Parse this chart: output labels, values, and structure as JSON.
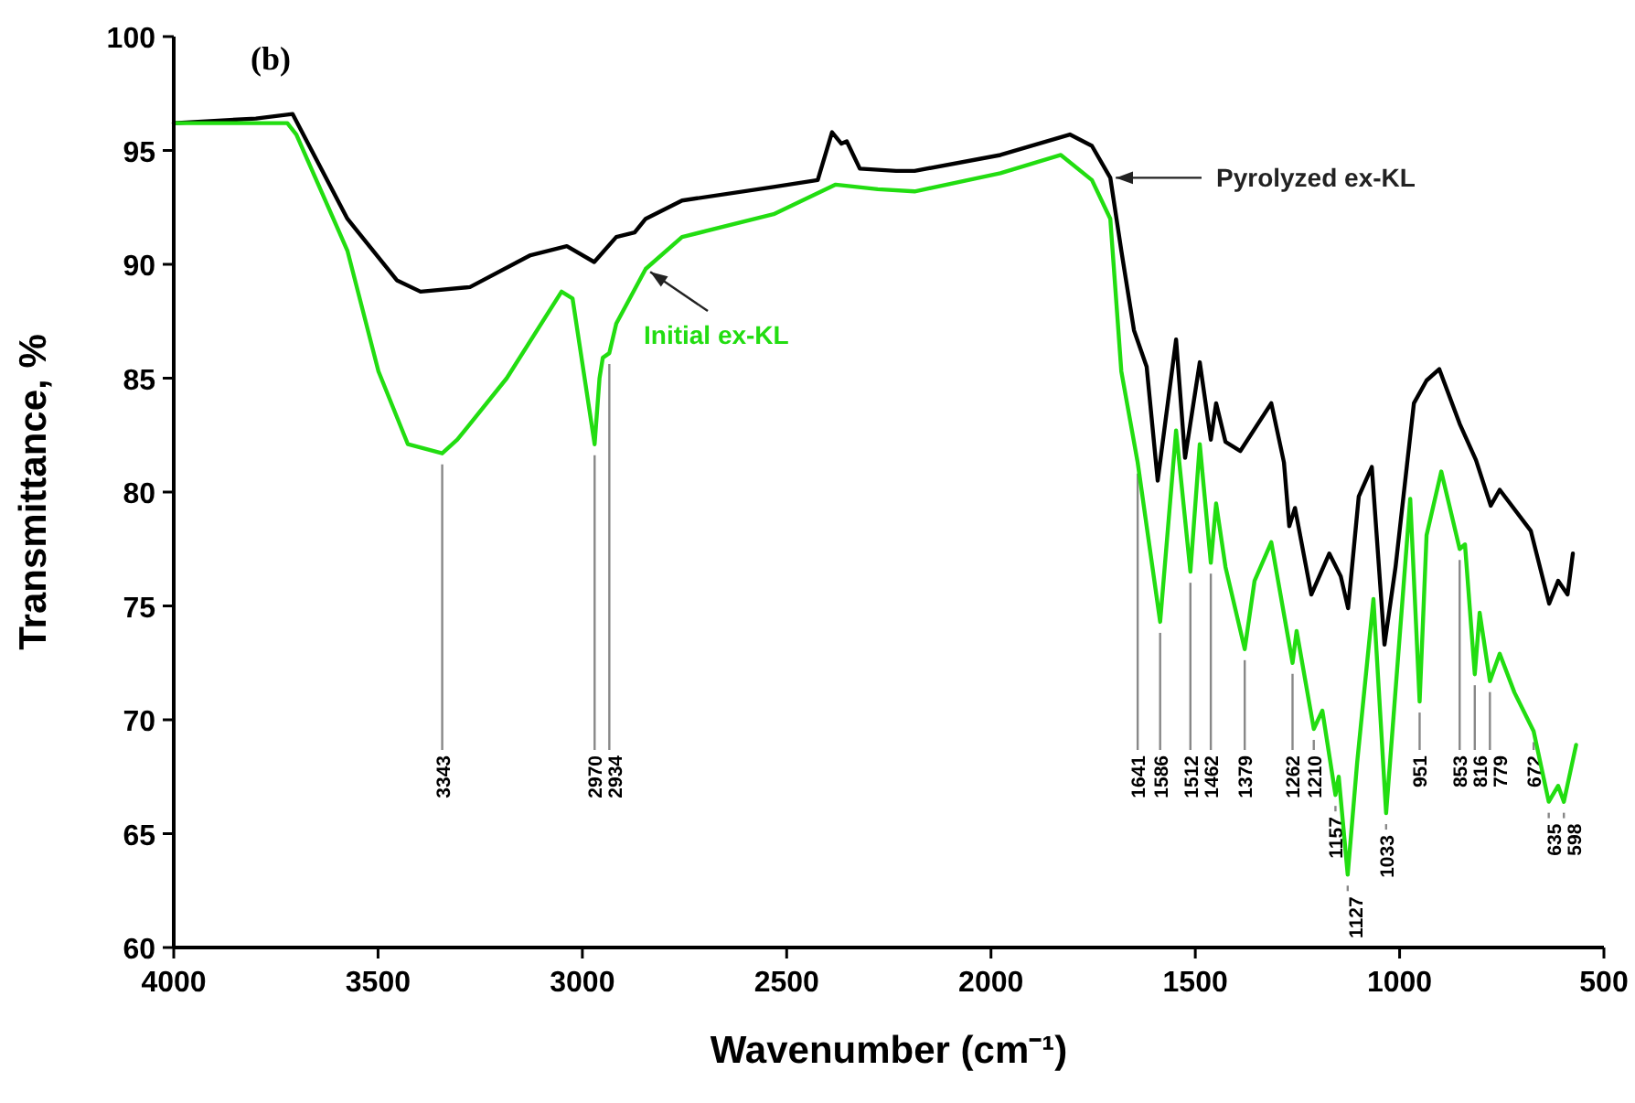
{
  "chart_data": {
    "type": "line",
    "title": "(b)",
    "xlabel": "Wavenumber (cm⁻¹)",
    "ylabel": "Transmittance, %",
    "xlim": [
      4000,
      500
    ],
    "xticks": [
      4000,
      3500,
      3000,
      2500,
      2000,
      1500,
      1000,
      500
    ],
    "ylim": [
      60,
      100
    ],
    "yticks": [
      60,
      65,
      70,
      75,
      80,
      85,
      90,
      95,
      100
    ],
    "grid": false,
    "line_style": "solid",
    "series": [
      {
        "name": "Pyrolyzed ex-KL",
        "color": "#000000",
        "x": [
          4000,
          3799,
          3709,
          3575,
          3454,
          3396,
          3275,
          3127,
          3038,
          2971,
          2917,
          2872,
          2845,
          2756,
          2532,
          2424,
          2389,
          2366,
          2353,
          2321,
          2232,
          2187,
          1977,
          1807,
          1753,
          1708,
          1681,
          1650,
          1619,
          1592,
          1547,
          1525,
          1489,
          1462,
          1449,
          1426,
          1390,
          1314,
          1283,
          1270,
          1256,
          1216,
          1172,
          1144,
          1126,
          1100,
          1068,
          1037,
          1010,
          965,
          934,
          903,
          853,
          813,
          777,
          755,
          679,
          634,
          612,
          589,
          576
        ],
        "values": [
          96.2,
          96.4,
          96.6,
          92.0,
          89.3,
          88.8,
          89.0,
          90.4,
          90.8,
          90.1,
          91.2,
          91.4,
          92.0,
          92.8,
          93.4,
          93.7,
          95.8,
          95.3,
          95.4,
          94.2,
          94.1,
          94.1,
          94.8,
          95.7,
          95.2,
          93.8,
          90.6,
          87.1,
          85.5,
          80.5,
          86.7,
          81.5,
          85.7,
          82.3,
          83.9,
          82.2,
          81.8,
          83.9,
          81.3,
          78.5,
          79.3,
          75.5,
          77.3,
          76.3,
          74.9,
          79.8,
          81.1,
          73.3,
          76.7,
          83.9,
          84.9,
          85.4,
          83.0,
          81.4,
          79.4,
          80.1,
          78.3,
          75.1,
          76.1,
          75.5,
          77.3
        ]
      },
      {
        "name": "Initial ex-KL",
        "color": "#22dd11",
        "x": [
          4000,
          3722,
          3700,
          3575,
          3499,
          3427,
          3343,
          3306,
          3185,
          3051,
          3024,
          2970,
          2958,
          2950,
          2934,
          2917,
          2845,
          2756,
          2532,
          2380,
          2277,
          2187,
          1977,
          1829,
          1753,
          1708,
          1681,
          1641,
          1586,
          1547,
          1512,
          1489,
          1462,
          1449,
          1426,
          1379,
          1355,
          1314,
          1262,
          1252,
          1210,
          1189,
          1157,
          1149,
          1127,
          1104,
          1064,
          1033,
          974,
          951,
          934,
          898,
          853,
          840,
          816,
          804,
          779,
          755,
          719,
          672,
          635,
          612,
          598,
          568
        ],
        "values": [
          96.2,
          96.2,
          95.7,
          90.6,
          85.3,
          82.1,
          81.7,
          82.3,
          85.0,
          88.8,
          88.5,
          82.1,
          85.0,
          85.9,
          86.1,
          87.4,
          89.8,
          91.2,
          92.2,
          93.5,
          93.3,
          93.2,
          94.0,
          94.8,
          93.7,
          92.0,
          85.3,
          81.3,
          74.3,
          82.7,
          76.5,
          82.1,
          76.9,
          79.5,
          76.7,
          73.1,
          76.1,
          77.8,
          72.5,
          73.9,
          69.6,
          70.4,
          66.7,
          67.5,
          63.2,
          68.1,
          75.3,
          65.9,
          79.7,
          70.8,
          78.1,
          80.9,
          77.5,
          77.7,
          72.0,
          74.7,
          71.7,
          72.9,
          71.2,
          69.5,
          66.4,
          67.1,
          66.4,
          68.9
        ]
      }
    ],
    "annotations": [
      {
        "text": "3343",
        "x": 3343,
        "y": 81.7
      },
      {
        "text": "2970",
        "x": 2970,
        "y": 82.1
      },
      {
        "text": "2934",
        "x": 2934,
        "y": 86.1
      },
      {
        "text": "1641",
        "x": 1641,
        "y": 81.3
      },
      {
        "text": "1586",
        "x": 1586,
        "y": 74.3
      },
      {
        "text": "1512",
        "x": 1512,
        "y": 76.5
      },
      {
        "text": "1462",
        "x": 1462,
        "y": 76.9
      },
      {
        "text": "1379",
        "x": 1379,
        "y": 73.1
      },
      {
        "text": "1262",
        "x": 1262,
        "y": 72.5
      },
      {
        "text": "1210",
        "x": 1210,
        "y": 69.6
      },
      {
        "text": "1157",
        "x": 1157,
        "y": 66.7
      },
      {
        "text": "1127",
        "x": 1127,
        "y": 63.2
      },
      {
        "text": "1033",
        "x": 1033,
        "y": 65.9
      },
      {
        "text": "951",
        "x": 951,
        "y": 70.8
      },
      {
        "text": "853",
        "x": 853,
        "y": 77.5
      },
      {
        "text": "816",
        "x": 816,
        "y": 72.0
      },
      {
        "text": "779",
        "x": 779,
        "y": 71.7
      },
      {
        "text": "672",
        "x": 672,
        "y": 69.5
      },
      {
        "text": "635",
        "x": 635,
        "y": 66.4
      },
      {
        "text": "598",
        "x": 598,
        "y": 66.4
      }
    ]
  }
}
